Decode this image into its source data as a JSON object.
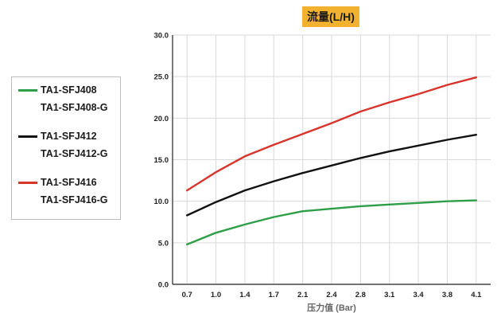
{
  "chart_data": {
    "type": "line",
    "title": "流量(L/H)",
    "xlabel": "压力值 (Bar)",
    "ylabel": "",
    "categories": [
      "0.7",
      "1.0",
      "1.4",
      "1.7",
      "2.1",
      "2.4",
      "2.8",
      "3.1",
      "3.4",
      "3.8",
      "4.1"
    ],
    "x": [
      0.7,
      1.0,
      1.4,
      1.7,
      2.1,
      2.4,
      2.8,
      3.1,
      3.4,
      3.8,
      4.1
    ],
    "ylim": [
      0,
      30
    ],
    "yticks": [
      "0.0",
      "5.0",
      "10.0",
      "15.0",
      "20.0",
      "25.0",
      "30.0"
    ],
    "grid": true,
    "legend_position": "left",
    "series": [
      {
        "name": "TA1-SFJ408",
        "name2": "TA1-SFJ408-G",
        "color": "#2e9e47",
        "values": [
          4.8,
          6.2,
          7.2,
          8.1,
          8.8,
          9.1,
          9.4,
          9.6,
          9.8,
          10.0,
          10.1
        ]
      },
      {
        "name": "TA1-SFJ412",
        "name2": "TA1-SFJ412-G",
        "color": "#111111",
        "values": [
          8.3,
          9.9,
          11.3,
          12.4,
          13.4,
          14.3,
          15.2,
          16.0,
          16.7,
          17.4,
          18.0
        ]
      },
      {
        "name": "TA1-SFJ416",
        "name2": "TA1-SFJ416-G",
        "color": "#d9342b",
        "values": [
          11.3,
          13.5,
          15.4,
          16.8,
          18.1,
          19.4,
          20.8,
          21.9,
          22.9,
          24.0,
          24.9
        ]
      }
    ]
  }
}
